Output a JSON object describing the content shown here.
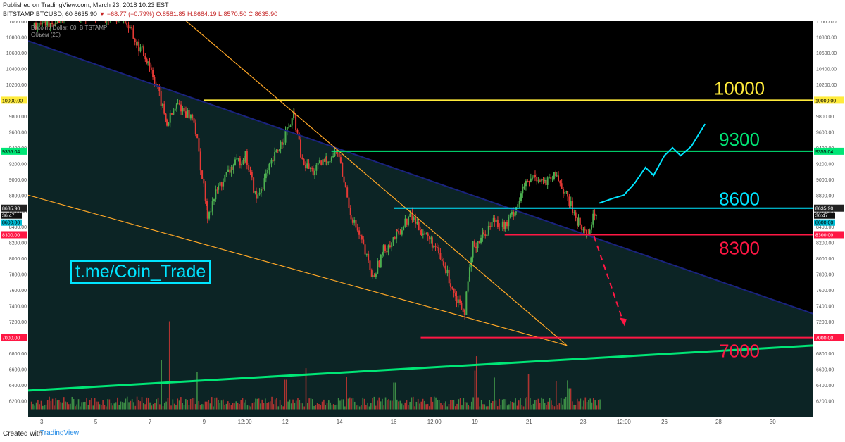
{
  "header": {
    "published": "Published on TradingView.com, March 23, 2018 10:23 EST",
    "symbol": "BITSTAMP:BTCUSD, 60",
    "price": "8635.90",
    "change": "▼ −68.77 (−0.79%)",
    "o": "O:8581.85",
    "h": "H:8684.19",
    "l": "L:8570.50",
    "c": "C:8635.90"
  },
  "legend": {
    "title": "Bitcoin / Dollar, 60, BITSTAMP",
    "volume": "Объем (20)"
  },
  "watermark": "t.me/Coin_Trade",
  "footer": {
    "created": "Created with",
    "brand": "TradingView"
  },
  "colors": {
    "bull": "#4caf50",
    "bear": "#e53935",
    "yellow": "#ffeb3b",
    "green": "#00e676",
    "cyan": "#00e5ff",
    "red": "#ff1744",
    "orange": "#ffa726",
    "navy": "#1a237e"
  },
  "chart_data": {
    "type": "candlestick",
    "title": "Bitcoin / Dollar, 60, BITSTAMP",
    "xlabel": "",
    "ylabel": "",
    "ylim": [
      6000,
      11000
    ],
    "y_ticks": [
      6200,
      6400,
      6600,
      6800,
      7000,
      7200,
      7400,
      7600,
      7800,
      8000,
      8200,
      8400,
      8600,
      8800,
      9000,
      9200,
      9400,
      9600,
      9800,
      10000,
      10200,
      10400,
      10600,
      10800,
      11000
    ],
    "y_tick_labels": [
      "6200.00",
      "6400.00",
      "6600.00",
      "6800.00",
      "7000.00",
      "7200.00",
      "7400.00",
      "7600.00",
      "7800.00",
      "8000.00",
      "8200.00",
      "8400.00",
      "8600.00",
      "8800.00",
      "9000.00",
      "9200.00",
      "9400.00",
      "9600.00",
      "9800.00",
      "10000.00",
      "10200.00",
      "10400.00",
      "10600.00",
      "10800.00",
      "11000.00"
    ],
    "x_ticks": [
      {
        "label": "3",
        "day": 3
      },
      {
        "label": "5",
        "day": 5
      },
      {
        "label": "7",
        "day": 7
      },
      {
        "label": "9",
        "day": 9
      },
      {
        "label": "12:00",
        "day": 10.5
      },
      {
        "label": "12",
        "day": 12
      },
      {
        "label": "14",
        "day": 14
      },
      {
        "label": "16",
        "day": 16
      },
      {
        "label": "12:00",
        "day": 17.5
      },
      {
        "label": "19",
        "day": 19
      },
      {
        "label": "21",
        "day": 21
      },
      {
        "label": "23",
        "day": 23
      },
      {
        "label": "12:00",
        "day": 24.5
      },
      {
        "label": "26",
        "day": 26
      },
      {
        "label": "28",
        "day": 28
      },
      {
        "label": "30",
        "day": 30
      }
    ],
    "x_range": [
      2.5,
      31.5
    ],
    "price_path": [
      [
        2.7,
        10950
      ],
      [
        3.5,
        11000
      ],
      [
        4.0,
        11100
      ],
      [
        6.0,
        11050
      ],
      [
        6.5,
        10700
      ],
      [
        6.9,
        10500
      ],
      [
        7.2,
        10200
      ],
      [
        7.6,
        9700
      ],
      [
        8.0,
        9950
      ],
      [
        8.6,
        9750
      ],
      [
        9.1,
        8550
      ],
      [
        9.5,
        8900
      ],
      [
        10.0,
        9150
      ],
      [
        10.5,
        9300
      ],
      [
        10.9,
        8750
      ],
      [
        11.4,
        9150
      ],
      [
        11.8,
        9450
      ],
      [
        12.3,
        9800
      ],
      [
        12.6,
        9200
      ],
      [
        13.0,
        9100
      ],
      [
        13.5,
        9250
      ],
      [
        13.9,
        9350
      ],
      [
        14.4,
        8550
      ],
      [
        14.8,
        8200
      ],
      [
        15.2,
        7750
      ],
      [
        15.6,
        8100
      ],
      [
        16.1,
        8300
      ],
      [
        16.6,
        8550
      ],
      [
        17.0,
        8350
      ],
      [
        17.4,
        8200
      ],
      [
        17.9,
        7850
      ],
      [
        18.3,
        7500
      ],
      [
        18.6,
        7350
      ],
      [
        18.9,
        8150
      ],
      [
        19.3,
        8300
      ],
      [
        19.7,
        8500
      ],
      [
        20.1,
        8400
      ],
      [
        20.5,
        8650
      ],
      [
        20.8,
        8900
      ],
      [
        21.2,
        9050
      ],
      [
        21.6,
        8950
      ],
      [
        22.0,
        9050
      ],
      [
        22.4,
        8750
      ],
      [
        22.8,
        8450
      ],
      [
        23.1,
        8300
      ],
      [
        23.5,
        8635
      ]
    ],
    "volume_spikes": [
      [
        7.7,
        1250
      ],
      [
        7.4,
        700
      ],
      [
        12.0,
        420
      ],
      [
        19.0,
        550
      ],
      [
        16.0,
        380
      ],
      [
        22.5,
        300
      ]
    ],
    "levels": [
      {
        "label": "10000",
        "price": 10000,
        "tag": "10000.00",
        "color": "#ffeb3b",
        "from_day": 9.0
      },
      {
        "label": "9300",
        "price": 9355.04,
        "tag": "9355.04",
        "color": "#00e676",
        "from_day": 13.7
      },
      {
        "label": "8600",
        "price": 8635.9,
        "tag": "8635.90",
        "color": "#00e5ff",
        "from_day": 16.0
      },
      {
        "label": "8300",
        "price": 8300,
        "tag": "8300.00",
        "color": "#ff1744",
        "from_day": 20.1
      },
      {
        "label": "7000",
        "price": 7000,
        "tag": "7000.00",
        "color": "#ff1744",
        "from_day": 17.0
      }
    ],
    "small_tags": [
      "36:47",
      "8600.00"
    ],
    "trendlines": [
      {
        "name": "channel-top",
        "color": "#1a237e",
        "p1": [
          2.5,
          10750
        ],
        "p2": [
          31.5,
          7300
        ]
      },
      {
        "name": "wedge-lower",
        "color": "#ffa726",
        "p1": [
          2.5,
          8800
        ],
        "p2": [
          22.4,
          6900
        ]
      },
      {
        "name": "wedge-upper",
        "color": "#ffa726",
        "p1": [
          8.0,
          11100
        ],
        "p2": [
          22.4,
          6900
        ]
      },
      {
        "name": "support",
        "color": "#00e676",
        "p1": [
          2.5,
          6330
        ],
        "p2": [
          31.5,
          6900
        ]
      }
    ],
    "projection_up": [
      [
        23.6,
        8700
      ],
      [
        24.1,
        8760
      ],
      [
        24.5,
        8800
      ],
      [
        24.9,
        8950
      ],
      [
        25.3,
        9150
      ],
      [
        25.6,
        9050
      ],
      [
        26.0,
        9300
      ],
      [
        26.3,
        9400
      ],
      [
        26.6,
        9300
      ],
      [
        27.0,
        9420
      ],
      [
        27.5,
        9700
      ]
    ],
    "projection_down": [
      [
        23.4,
        8280
      ],
      [
        24.5,
        7180
      ]
    ]
  }
}
